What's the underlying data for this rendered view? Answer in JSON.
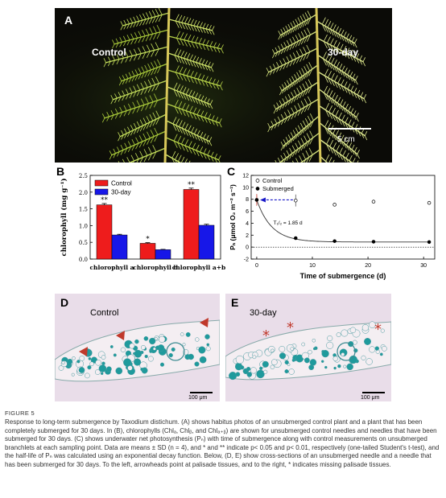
{
  "figure": {
    "label": "FIGURE 5",
    "caption": "Response to long-term submergence by Taxodium distichum. (A) shows habitus photos of an unsubmerged control plant and a plant that has been completely submerged for 30 days. In (B), chlorophylls (Chlₐ, Chlᵦ, and Chlₐ₊ᵦ) are shown for unsubmerged control needles and needles that have been submerged for 30 days. (C) shows underwater net photosynthesis (Pₙ) with time of submergence along with control measurements on unsubmerged branchlets at each sampling point. Data are means ± SD (n = 4), and * and ** indicate p< 0.05 and p< 0.01, respectively (one-tailed Student's t-test), and the half-life of Pₙ was calculated using an exponential decay function. Below, (D, E) show cross-sections of an unsubmerged needle and a needle that has been submerged for 30 days. To the left, arrowheads point at palisade tissues, and to the right, * indicates missing palisade tissues."
  },
  "panelA": {
    "letter": "A",
    "label_left": "Control",
    "label_right": "30-day",
    "scale_label": "5 cm"
  },
  "panelD": {
    "letter": "D",
    "label": "Control",
    "scale_label": "100 μm"
  },
  "panelE": {
    "letter": "E",
    "label": "30-day",
    "scale_label": "100 μm"
  },
  "colors": {
    "control": "#ee1c1c",
    "submerged": "#1717e8",
    "stain": "#1a9a9a",
    "marker": "#c0392b"
  },
  "chart_data": [
    {
      "panel": "B",
      "type": "bar",
      "categories": [
        "chlorophyll a",
        "chlorophyll b",
        "chlorophyll a+b"
      ],
      "series": [
        {
          "name": "Control",
          "values": [
            1.62,
            0.47,
            2.08
          ],
          "errors": [
            0.04,
            0.02,
            0.04
          ]
        },
        {
          "name": "30-day",
          "values": [
            0.72,
            0.28,
            1.01
          ],
          "errors": [
            0.02,
            0.01,
            0.03
          ]
        }
      ],
      "significance": [
        "**",
        "*",
        "**"
      ],
      "ylabel": "chlorophyll (mg g⁻¹)",
      "ylim": [
        0,
        2.5
      ],
      "yticks": [
        "0.0",
        "0.5",
        "1.0",
        "1.5",
        "2.0",
        "2.5"
      ],
      "legend": "top-left"
    },
    {
      "panel": "C",
      "type": "scatter",
      "xlabel": "Time of submergence  (d)",
      "ylabel": "Pₙ (μmol O₂ m⁻² s⁻¹)",
      "xlim": [
        -1,
        32
      ],
      "ylim": [
        -2,
        12
      ],
      "xticks": [
        "0",
        "10",
        "20",
        "30"
      ],
      "yticks": [
        "-2",
        "0",
        "2",
        "4",
        "6",
        "8",
        "10",
        "12"
      ],
      "series": [
        {
          "name": "Control",
          "x": [
            0,
            7,
            14,
            21,
            31
          ],
          "y": [
            7.9,
            7.8,
            7.1,
            7.6,
            7.4
          ],
          "errors": [
            1.0,
            1.0,
            0.1,
            0.1,
            0.3
          ],
          "marker": "open"
        },
        {
          "name": "Submerged",
          "x": [
            0,
            7,
            14,
            21,
            31
          ],
          "y": [
            7.9,
            1.5,
            1.0,
            0.9,
            0.85
          ],
          "errors": [
            0.8,
            0.2,
            0.2,
            0.1,
            0.2
          ],
          "marker": "filled"
        }
      ],
      "annotation": "T₁/₂ = 1.85 d",
      "legend": "top-left"
    }
  ]
}
